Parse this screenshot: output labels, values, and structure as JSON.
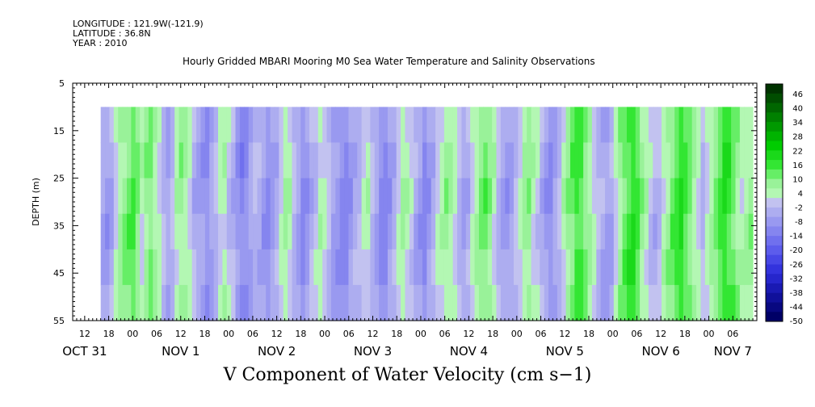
{
  "header": {
    "longitude": "LONGITUDE : 121.9W(-121.9)",
    "latitude": "LATITUDE : 36.8N",
    "year": "YEAR : 2010"
  },
  "chart_data": {
    "type": "heatmap",
    "title": "Hourly Gridded MBARI Mooring M0 Sea Water Temperature and Salinity Observations",
    "bottom_title": "V Component of Water Velocity (cm s−1)",
    "ylabel": "DEPTH (m)",
    "y_ticks": [
      "5",
      "15",
      "25",
      "35",
      "45",
      "55"
    ],
    "y_range": [
      5,
      55
    ],
    "data_depth_range": [
      10,
      55
    ],
    "x_start": "2010-10-31T09:00",
    "x_end": "2010-11-07T12:00",
    "data_x_start": "2010-10-31T16:00",
    "data_x_end": "2010-11-07T11:00",
    "x_hour_ticks": [
      "12",
      "18",
      "00",
      "06",
      "12",
      "18",
      "00",
      "06",
      "12",
      "18",
      "00",
      "06",
      "12",
      "18",
      "00",
      "06",
      "12",
      "18",
      "00",
      "06",
      "12",
      "18",
      "00",
      "06",
      "12",
      "18",
      "00",
      "06"
    ],
    "x_day_labels": [
      "OCT 31",
      "NOV  1",
      "NOV  2",
      "NOV  3",
      "NOV  4",
      "NOV  5",
      "NOV  6",
      "NOV  7"
    ],
    "colorbar_labels": [
      "46",
      "40",
      "34",
      "28",
      "22",
      "16",
      "10",
      "4",
      "-2",
      "-8",
      "-14",
      "-20",
      "-26",
      "-32",
      "-38",
      "-44",
      "-50"
    ],
    "colorbar_colors": [
      "#003300",
      "#004d00",
      "#006600",
      "#008000",
      "#009900",
      "#00b300",
      "#00cc00",
      "#1ad91a",
      "#33e633",
      "#66ee66",
      "#99f299",
      "#b3f7b3",
      "#c2c2f0",
      "#adadf0",
      "#9999f0",
      "#8585ef",
      "#7070ee",
      "#5c5cec",
      "#4747e6",
      "#3333dd",
      "#2626cc",
      "#1a1ab3",
      "#10109a",
      "#080880",
      "#000066"
    ],
    "column_v_values_cm_s": [
      -6,
      -8,
      -5,
      2,
      6,
      9,
      12,
      14,
      10,
      4,
      8,
      11,
      6,
      2,
      -3,
      -5,
      -2,
      4,
      8,
      6,
      2,
      -4,
      -6,
      -8,
      -10,
      -6,
      -2,
      2,
      4,
      0,
      -4,
      -8,
      -12,
      -10,
      -6,
      -2,
      -4,
      -8,
      -10,
      -6,
      -4,
      2,
      6,
      4,
      -2,
      -6,
      -10,
      -8,
      -4,
      0,
      4,
      2,
      -2,
      -6,
      -8,
      -10,
      -12,
      -8,
      -4,
      -2,
      2,
      4,
      -2,
      -6,
      -10,
      -12,
      -8,
      -4,
      2,
      6,
      4,
      0,
      -4,
      -8,
      -12,
      -8,
      -4,
      2,
      4,
      8,
      6,
      2,
      -2,
      -6,
      -4,
      2,
      6,
      10,
      12,
      8,
      4,
      -2,
      -6,
      -8,
      -6,
      -2,
      2,
      6,
      8,
      4,
      0,
      -4,
      -8,
      -10,
      -6,
      -2,
      4,
      8,
      12,
      16,
      14,
      10,
      6,
      2,
      -2,
      -4,
      -6,
      -4,
      2,
      8,
      12,
      16,
      18,
      14,
      8,
      4,
      0,
      -4,
      -2,
      4,
      8,
      12,
      16,
      18,
      14,
      10,
      6,
      2,
      -2,
      2,
      6,
      10,
      14,
      18,
      16,
      12,
      8,
      4,
      6,
      8
    ]
  }
}
